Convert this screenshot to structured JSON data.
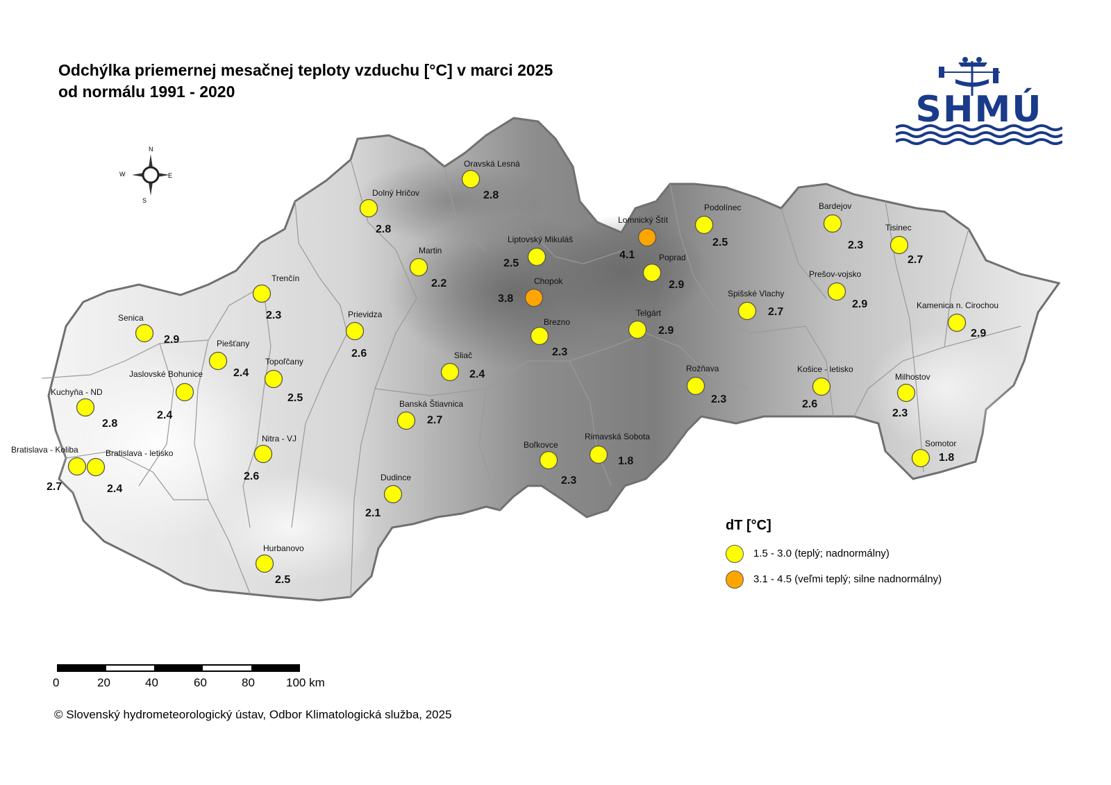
{
  "title": {
    "line1": "Odchýlka priemernej mesačnej teploty vzduchu [°C] v marci 2025",
    "line2": "od normálu 1991 - 2020"
  },
  "logo": {
    "text": "SHMÚ"
  },
  "compass": {
    "n": "N",
    "s": "S",
    "e": "E",
    "w": "W"
  },
  "colors": {
    "warm": "#ffff00",
    "very_warm": "#ffa500",
    "marker_stroke": "#555555"
  },
  "stations": [
    {
      "name": "Oravská Lesná",
      "value": "2.8",
      "class": "warm"
    },
    {
      "name": "Dolný Hričov",
      "value": "2.8",
      "class": "warm"
    },
    {
      "name": "Martin",
      "value": "2.2",
      "class": "warm"
    },
    {
      "name": "Liptovský Mikuláš",
      "value": "2.5",
      "class": "warm"
    },
    {
      "name": "Lomnický Štít",
      "value": "4.1",
      "class": "very_warm"
    },
    {
      "name": "Podolínec",
      "value": "2.5",
      "class": "warm"
    },
    {
      "name": "Poprad",
      "value": "2.9",
      "class": "warm"
    },
    {
      "name": "Bardejov",
      "value": "2.3",
      "class": "warm"
    },
    {
      "name": "Tisinec",
      "value": "2.7",
      "class": "warm"
    },
    {
      "name": "Trenčín",
      "value": "2.3",
      "class": "warm"
    },
    {
      "name": "Chopok",
      "value": "3.8",
      "class": "very_warm"
    },
    {
      "name": "Prešov-vojsko",
      "value": "2.9",
      "class": "warm"
    },
    {
      "name": "Spišské Vlachy",
      "value": "2.7",
      "class": "warm"
    },
    {
      "name": "Kamenica n. Cirochou",
      "value": "2.9",
      "class": "warm"
    },
    {
      "name": "Senica",
      "value": "2.9",
      "class": "warm"
    },
    {
      "name": "Prievidza",
      "value": "2.6",
      "class": "warm"
    },
    {
      "name": "Telgárt",
      "value": "2.9",
      "class": "warm"
    },
    {
      "name": "Brezno",
      "value": "2.3",
      "class": "warm"
    },
    {
      "name": "Piešťany",
      "value": "2.4",
      "class": "warm"
    },
    {
      "name": "Sliač",
      "value": "2.4",
      "class": "warm"
    },
    {
      "name": "Topoľčany",
      "value": "2.5",
      "class": "warm"
    },
    {
      "name": "Jaslovské Bohunice",
      "value": "2.4",
      "class": "warm"
    },
    {
      "name": "Rožňava",
      "value": "2.3",
      "class": "warm"
    },
    {
      "name": "Košice - letisko",
      "value": "2.6",
      "class": "warm"
    },
    {
      "name": "Milhostov",
      "value": "2.3",
      "class": "warm"
    },
    {
      "name": "Kuchyňa - ND",
      "value": "2.8",
      "class": "warm"
    },
    {
      "name": "Banská Štiavnica",
      "value": "2.7",
      "class": "warm"
    },
    {
      "name": "Nitra - VJ",
      "value": "2.6",
      "class": "warm"
    },
    {
      "name": "Rimavská Sobota",
      "value": "1.8",
      "class": "warm"
    },
    {
      "name": "Bratislava - Koliba",
      "value": "2.7",
      "class": "warm"
    },
    {
      "name": "Bratislava - letisko",
      "value": "2.4",
      "class": "warm"
    },
    {
      "name": "Boľkovce",
      "value": "2.3",
      "class": "warm"
    },
    {
      "name": "Somotor",
      "value": "1.8",
      "class": "warm"
    },
    {
      "name": "Dudince",
      "value": "2.1",
      "class": "warm"
    },
    {
      "name": "Hurbanovo",
      "value": "2.5",
      "class": "warm"
    }
  ],
  "legend": {
    "title": "dT [°C]",
    "items": [
      {
        "label": "1.5 - 3.0 (teplý; nadnormálny)",
        "color": "#ffff00"
      },
      {
        "label": "3.1 - 4.5 (veľmi teplý; silne nadnormálny)",
        "color": "#ffa500"
      }
    ]
  },
  "scale": {
    "ticks": [
      "0",
      "20",
      "40",
      "60",
      "80",
      "100 km"
    ]
  },
  "copyright": "© Slovenský hydrometeorologický ústav, Odbor Klimatologická služba, 2025"
}
